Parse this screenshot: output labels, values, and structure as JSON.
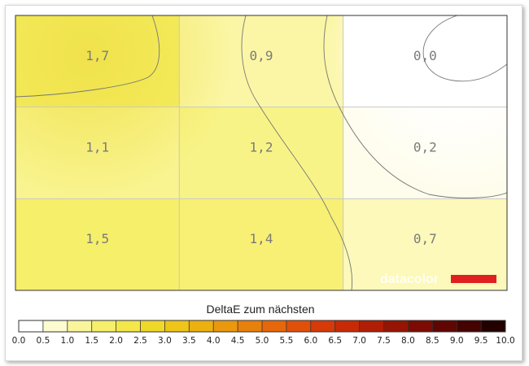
{
  "chart_data": {
    "type": "heatmap",
    "title": "",
    "rows": 3,
    "cols": 3,
    "values": [
      [
        1.7,
        0.9,
        0.0
      ],
      [
        1.1,
        1.2,
        0.2
      ],
      [
        1.5,
        1.4,
        0.7
      ]
    ],
    "cell_labels": [
      [
        "1,7",
        "0,9",
        "0,0"
      ],
      [
        "1,1",
        "1,2",
        "0,2"
      ],
      [
        "1,5",
        "1,4",
        "0,7"
      ]
    ],
    "grid": true,
    "contour_lines": true,
    "legend": {
      "title": "DeltaE zum nächsten",
      "placement": "bottom",
      "range": [
        0,
        10
      ],
      "step": 0.5,
      "ticks": [
        "0.0",
        "0.5",
        "1.0",
        "1.5",
        "2.0",
        "2.5",
        "3.0",
        "3.5",
        "4.0",
        "4.5",
        "5.0",
        "5.5",
        "6.0",
        "6.5",
        "7.0",
        "7.5",
        "8.0",
        "8.5",
        "9.0",
        "9.5",
        "10.0"
      ],
      "colors": [
        "#ffffff",
        "#fdfbd0",
        "#faf59a",
        "#f6ef6a",
        "#f3e74a",
        "#f0d82a",
        "#eec518",
        "#ecb010",
        "#ea980e",
        "#e8800c",
        "#e6680b",
        "#e0500a",
        "#d63a08",
        "#c82a06",
        "#b01e05",
        "#961404",
        "#7c0c03",
        "#600602",
        "#440201",
        "#220000"
      ]
    },
    "watermark": {
      "text": "datacolor",
      "bar_color": "#e02020"
    }
  }
}
